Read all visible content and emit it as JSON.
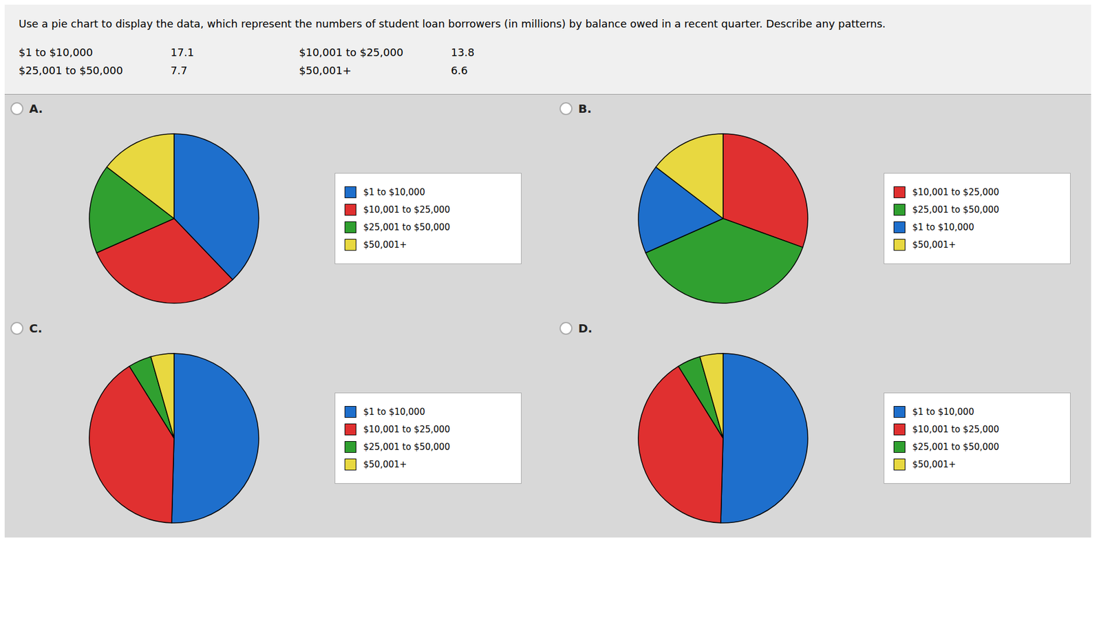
{
  "chart_data": [
    {
      "type": "table",
      "title": "Use a pie chart to display the data, which represent the numbers of student loan borrowers (in millions) by balance owed in a recent quarter. Describe any patterns.",
      "categories": [
        "$1 to $10,000",
        "$10,001 to $25,000",
        "$25,001 to $50,000",
        "$50,001+"
      ],
      "values": [
        17.1,
        13.8,
        7.7,
        6.6
      ]
    },
    {
      "type": "pie",
      "title": "A.",
      "legend": "right",
      "categories": [
        "$1 to $10,000",
        "$10,001 to $25,000",
        "$25,001 to $50,000",
        "$50,001+"
      ],
      "values": [
        17.1,
        13.8,
        7.7,
        6.6
      ],
      "colors": [
        "#1e6fcc",
        "#e03030",
        "#30a030",
        "#e8d840"
      ]
    },
    {
      "type": "pie",
      "title": "B.",
      "legend": "right",
      "categories": [
        "$10,001 to $25,000",
        "$25,001 to $50,000",
        "$1 to $10,000",
        "$50,001+"
      ],
      "values": [
        13.8,
        17.1,
        7.7,
        6.6
      ],
      "colors": [
        "#e03030",
        "#30a030",
        "#1e6fcc",
        "#e8d840"
      ]
    },
    {
      "type": "pie",
      "title": "C.",
      "legend": "right",
      "categories": [
        "$1 to $10,000",
        "$10,001 to $25,000",
        "$25,001 to $50,000",
        "$50,001+"
      ],
      "values": [
        17.1,
        13.8,
        1.5,
        1.5
      ],
      "colors": [
        "#1e6fcc",
        "#e03030",
        "#30a030",
        "#e8d840"
      ]
    },
    {
      "type": "pie",
      "title": "D.",
      "legend": "right",
      "categories": [
        "$1 to $10,000",
        "$10,001 to $25,000",
        "$25,001 to $50,000",
        "$50,001+"
      ],
      "values": [
        17.1,
        13.8,
        1.5,
        1.5
      ],
      "colors": [
        "#1e6fcc",
        "#e03030",
        "#30a030",
        "#e8d840"
      ]
    }
  ]
}
